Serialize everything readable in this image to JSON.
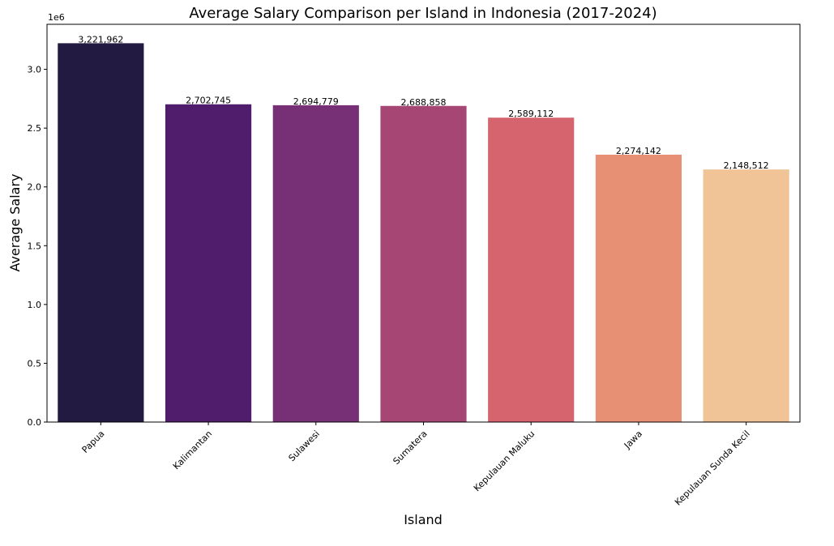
{
  "chart_data": {
    "type": "bar",
    "title": "Average Salary Comparison per Island in Indonesia (2017-2024)",
    "xlabel": "Island",
    "ylabel": "Average Salary",
    "y_offset_label": "1e6",
    "y_scale": 1000000,
    "ylim": [
      0,
      3383060
    ],
    "yticks": [
      0,
      500000,
      1000000,
      1500000,
      2000000,
      2500000,
      3000000
    ],
    "ytick_labels": [
      "0.0",
      "0.5",
      "1.0",
      "1.5",
      "2.0",
      "2.5",
      "3.0"
    ],
    "categories": [
      "Papua",
      "Kalimantan",
      "Sulawesi",
      "Sumatera",
      "Kepulauan Maluku",
      "Jawa",
      "Kepulauan Sunda Kecil"
    ],
    "values": [
      3221962,
      2702745,
      2694779,
      2688858,
      2589112,
      2274142,
      2148512
    ],
    "value_labels": [
      "3,221,962",
      "2,702,745",
      "2,694,779",
      "2,688,858",
      "2,589,112",
      "2,274,142",
      "2,148,512"
    ],
    "colors": [
      "#221a40",
      "#501d6c",
      "#772f75",
      "#a54675",
      "#d5646f",
      "#e79074",
      "#f0c497"
    ],
    "grid": false,
    "legend": "none"
  }
}
